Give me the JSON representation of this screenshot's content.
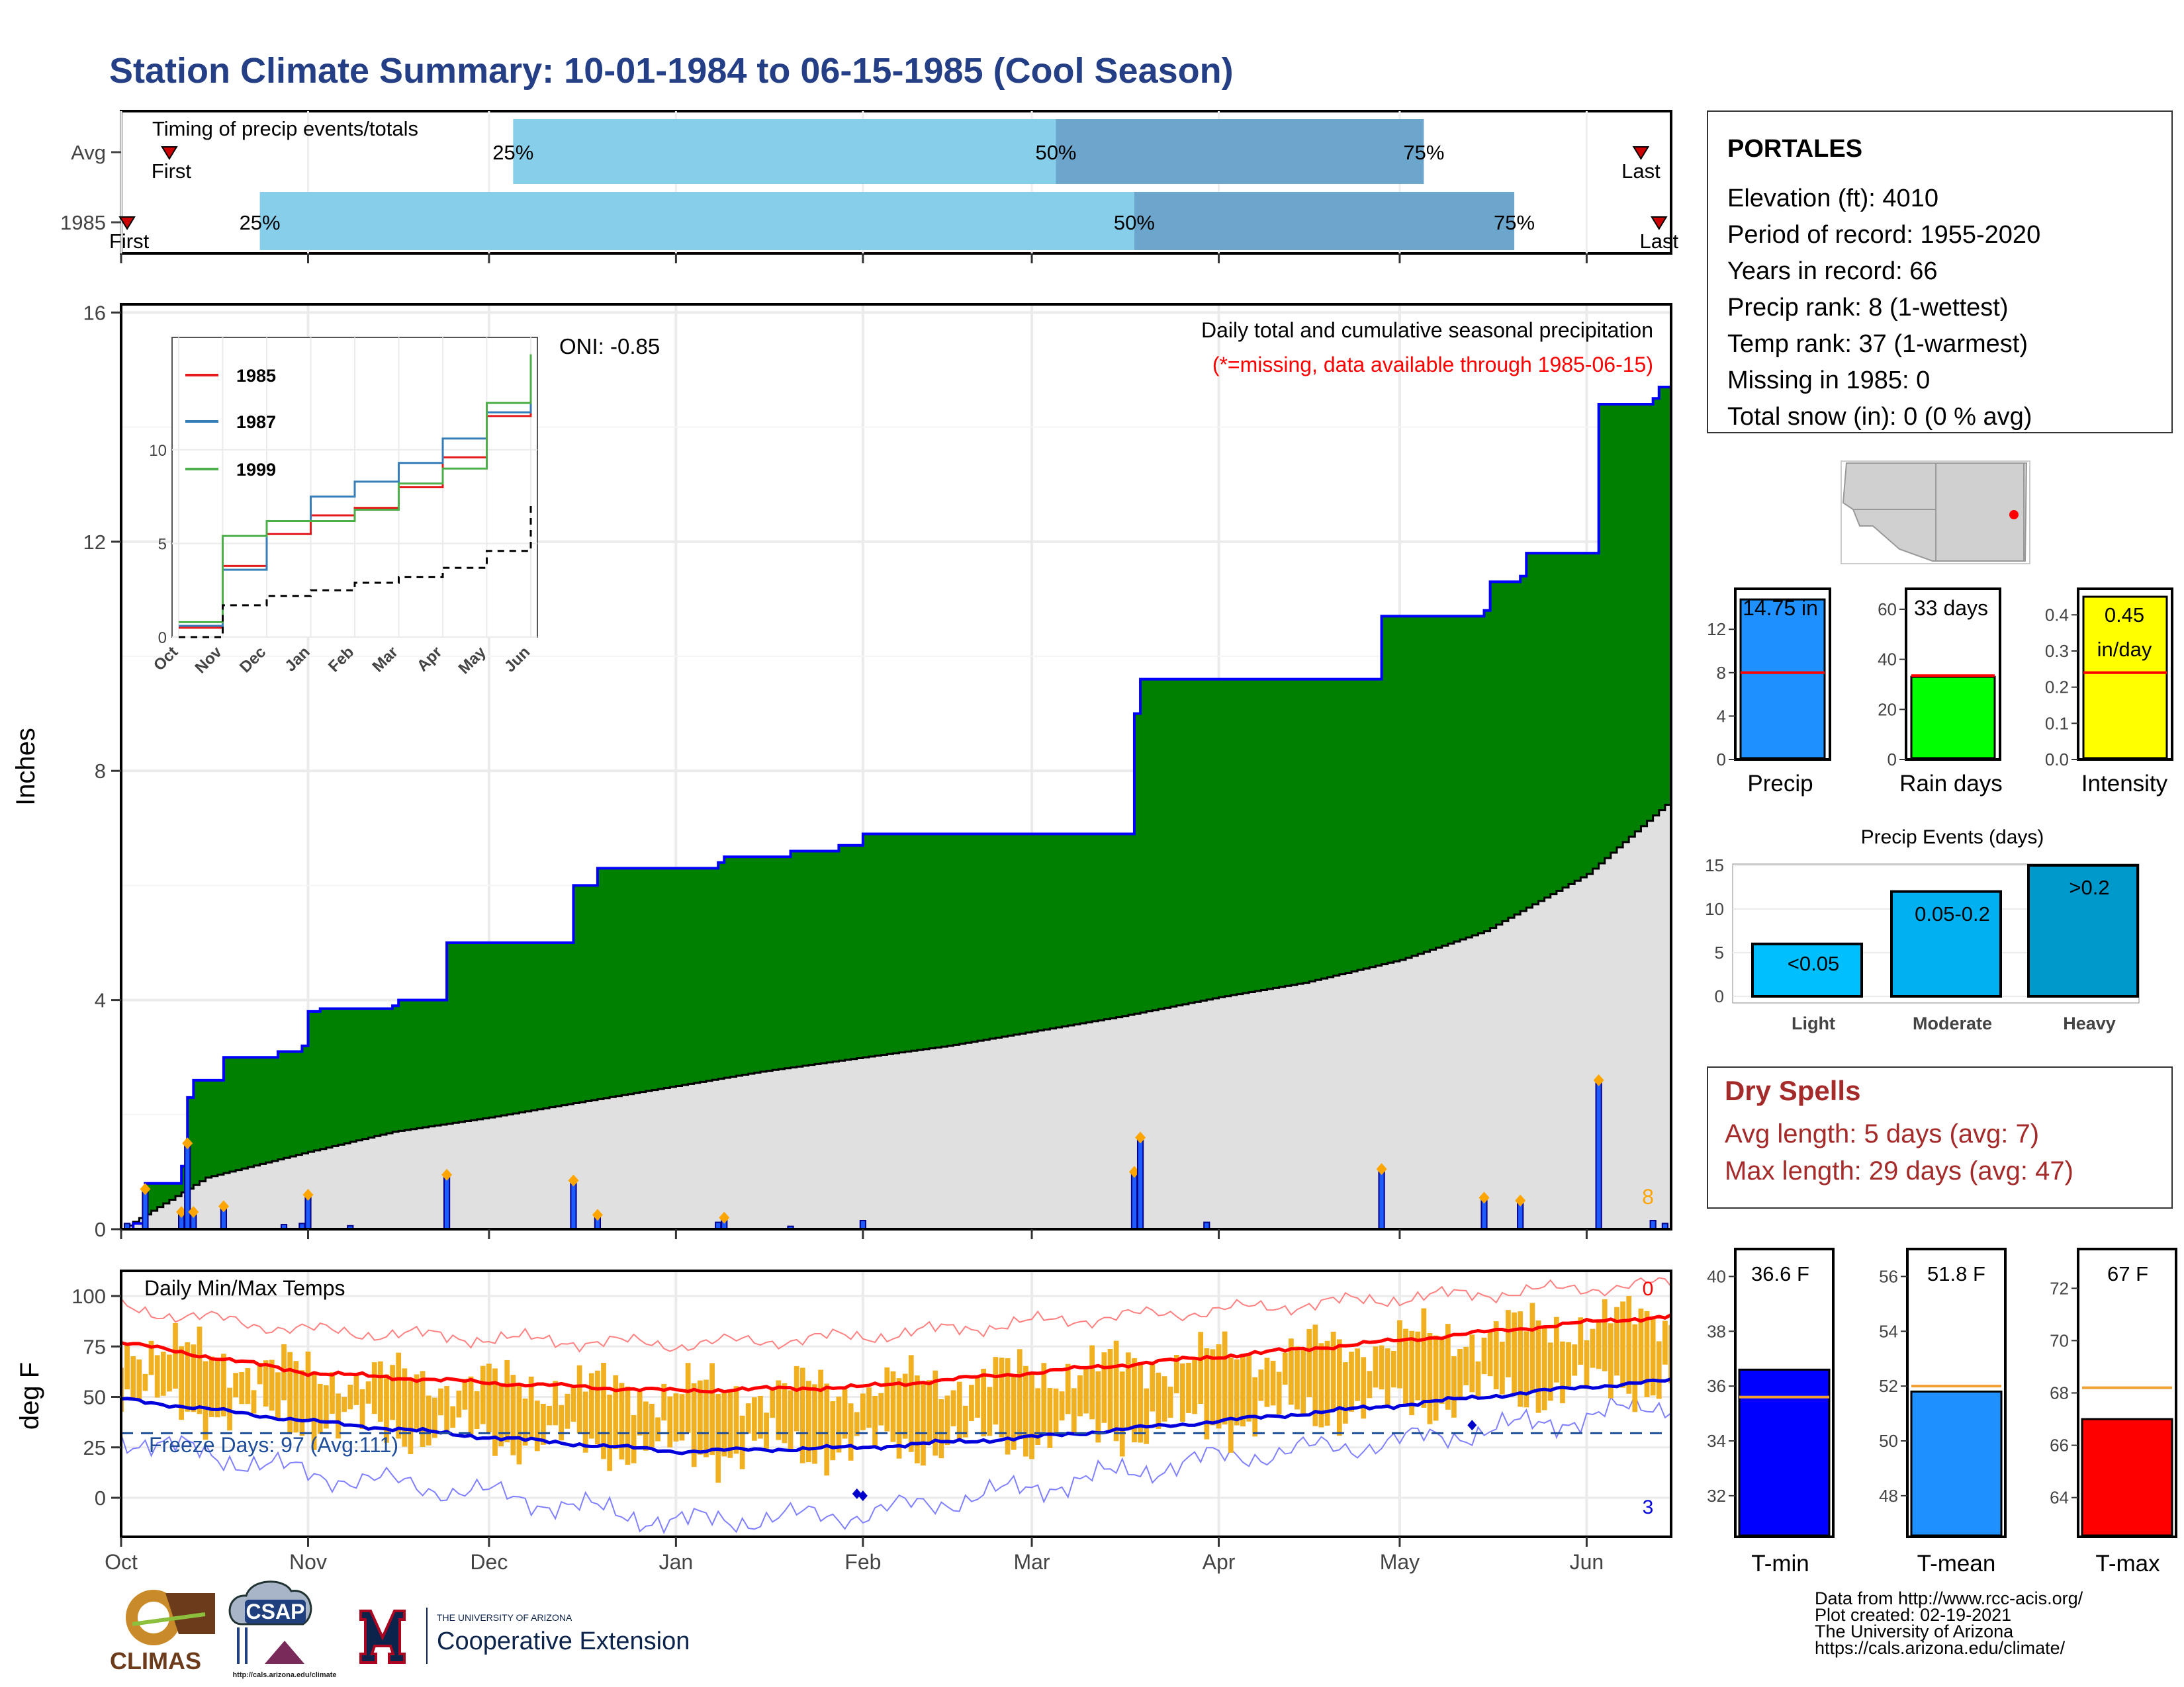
{
  "page": {
    "title": "Station Climate Summary: 10-01-1984 to 06-15-1985 (Cool Season)",
    "title_color": "#243f85"
  },
  "timing": {
    "title": "Timing of precip events/totals",
    "rows": [
      {
        "label": "Avg",
        "first_label": "First",
        "last_label": "Last",
        "first_date": "1984-10-09",
        "last_date": "1985-06-10",
        "p25": "1984-12-05",
        "p50": "1985-03-05",
        "p75": "1985-05-05"
      },
      {
        "label": "1985",
        "first_label": "First",
        "last_label": "Last",
        "first_date": "1984-10-02",
        "last_date": "1985-06-13",
        "p25": "1984-10-24",
        "p50": "1985-03-18",
        "p75": "1985-05-20"
      }
    ],
    "pct_labels": [
      "25%",
      "50%",
      "75%"
    ]
  },
  "precip_panel": {
    "ylabel": "Inches",
    "legend_line1": "Daily total and cumulative seasonal precipitation",
    "legend_line2": "(*=missing, data available through 1985-06-15)",
    "oni": "ONI: -0.85",
    "count_label": "8",
    "yticks": [
      "0",
      "4",
      "8",
      "12",
      "16"
    ]
  },
  "inset": {
    "legend": [
      "1985",
      "1987",
      "1999"
    ],
    "yticks": [
      "0",
      "5",
      "10"
    ],
    "xticks": [
      "Oct",
      "Nov",
      "Dec",
      "Jan",
      "Feb",
      "Mar",
      "Apr",
      "May",
      "Jun"
    ]
  },
  "temp_panel": {
    "ylabel": "deg F",
    "title": "Daily Min/Max Temps",
    "freeze_label": "Freeze Days: 97 (Avg:111)",
    "hot_count": "0",
    "cold_count": "3",
    "yticks": [
      "0",
      "25",
      "50",
      "75",
      "100"
    ]
  },
  "months": [
    "Oct",
    "Nov",
    "Dec",
    "Jan",
    "Feb",
    "Mar",
    "Apr",
    "May",
    "Jun"
  ],
  "station": {
    "name": "PORTALES",
    "lines": [
      "Elevation (ft): 4010",
      "Period of record: 1955-2020",
      "Years in record: 66",
      "Precip rank: 8 (1-wettest)",
      "Temp rank: 37 (1-warmest)",
      "Missing in 1985: 0",
      "Total snow (in): 0 (0 % avg)"
    ]
  },
  "summary_bars": {
    "precip": {
      "label": "Precip",
      "value_label": "14.75 in",
      "yticks": [
        "0",
        "4",
        "8",
        "12"
      ]
    },
    "rain_days": {
      "label": "Rain days",
      "value_label": "33 days",
      "yticks": [
        "0",
        "20",
        "40",
        "60"
      ]
    },
    "intensity": {
      "label": "Intensity",
      "value_label1": "0.45",
      "value_label2": "in/day",
      "yticks": [
        "0.0",
        "0.1",
        "0.2",
        "0.3",
        "0.4"
      ]
    }
  },
  "precip_events": {
    "title": "Precip Events (days)",
    "categories": [
      "Light",
      "Moderate",
      "Heavy"
    ],
    "value_labels": [
      "<0.05",
      "0.05-0.2",
      ">0.2"
    ],
    "yticks": [
      "0",
      "5",
      "10",
      "15"
    ]
  },
  "dry_spells": {
    "title": "Dry Spells",
    "line1": "Avg length: 5 days (avg: 7)",
    "line2": "Max length: 29 days (avg: 47)",
    "color": "#a52a2a"
  },
  "temp_bars": {
    "tmin": {
      "label": "T-min",
      "value_label": "36.6 F",
      "yticks": [
        "32",
        "34",
        "36",
        "38",
        "40"
      ]
    },
    "tmean": {
      "label": "T-mean",
      "value_label": "51.8 F",
      "yticks": [
        "48",
        "50",
        "52",
        "54",
        "56"
      ]
    },
    "tmax": {
      "label": "T-max",
      "value_label": "67 F",
      "yticks": [
        "64",
        "66",
        "68",
        "70",
        "72"
      ]
    }
  },
  "logos": {
    "climas": "CLIMAS",
    "csap": "CSAP",
    "csap_url": "http://cals.arizona.edu/climate",
    "ua_small": "THE UNIVERSITY OF ARIZONA",
    "ua_big": "Cooperative Extension"
  },
  "footer": [
    "Data from http://www.rcc-acis.org/",
    "Plot created: 02-19-2021",
    "The University of Arizona",
    "https://cals.arizona.edu/climate/"
  ],
  "chart_data": [
    {
      "type": "bar",
      "name": "timing",
      "categories": [
        "Avg",
        "1985"
      ],
      "series": [
        {
          "name": "Avg",
          "first": "1984-10-09",
          "p25": "1984-12-05",
          "p50": "1985-03-05",
          "p75": "1985-05-05",
          "last": "1985-06-10"
        },
        {
          "name": "1985",
          "first": "1984-10-02",
          "p25": "1984-10-24",
          "p50": "1985-03-18",
          "p75": "1985-05-20",
          "last": "1985-06-13"
        }
      ]
    },
    {
      "type": "area",
      "name": "precipitation",
      "xlim": [
        "1984-10-01",
        "1985-06-15"
      ],
      "ylim": [
        0,
        16
      ],
      "ylabel": "Inches",
      "cumulative_1985": [
        [
          "1984-10-01",
          0
        ],
        [
          "1984-10-03",
          0.1
        ],
        [
          "1984-10-05",
          0.8
        ],
        [
          "1984-10-10",
          0.8
        ],
        [
          "1984-10-11",
          1.1
        ],
        [
          "1984-10-12",
          2.3
        ],
        [
          "1984-10-13",
          2.6
        ],
        [
          "1984-10-17",
          2.6
        ],
        [
          "1984-10-18",
          3.0
        ],
        [
          "1984-10-27",
          3.1
        ],
        [
          "1984-10-31",
          3.2
        ],
        [
          "1984-11-01",
          3.8
        ],
        [
          "1984-11-03",
          3.85
        ],
        [
          "1984-11-15",
          3.9
        ],
        [
          "1984-11-16",
          4.0
        ],
        [
          "1984-11-23",
          4.0
        ],
        [
          "1984-11-24",
          5.0
        ],
        [
          "1984-12-14",
          5.0
        ],
        [
          "1984-12-15",
          6.0
        ],
        [
          "1984-12-19",
          6.3
        ],
        [
          "1985-01-07",
          6.3
        ],
        [
          "1985-01-08",
          6.4
        ],
        [
          "1985-01-09",
          6.5
        ],
        [
          "1985-01-20",
          6.6
        ],
        [
          "1985-01-28",
          6.7
        ],
        [
          "1985-02-01",
          6.9
        ],
        [
          "1985-03-17",
          6.9
        ],
        [
          "1985-03-18",
          9.0
        ],
        [
          "1985-03-19",
          9.6
        ],
        [
          "1985-04-27",
          9.6
        ],
        [
          "1985-04-28",
          10.7
        ],
        [
          "1985-05-15",
          10.8
        ],
        [
          "1985-05-16",
          11.3
        ],
        [
          "1985-05-21",
          11.4
        ],
        [
          "1985-05-22",
          11.8
        ],
        [
          "1985-06-02",
          11.8
        ],
        [
          "1985-06-03",
          14.4
        ],
        [
          "1985-06-12",
          14.5
        ],
        [
          "1985-06-13",
          14.7
        ],
        [
          "1985-06-15",
          14.75
        ]
      ],
      "average_cumulative": [
        [
          "1984-10-01",
          0
        ],
        [
          "1984-10-15",
          0.9
        ],
        [
          "1984-11-01",
          1.35
        ],
        [
          "1984-11-15",
          1.7
        ],
        [
          "1984-12-01",
          1.95
        ],
        [
          "1984-12-15",
          2.2
        ],
        [
          "1985-01-01",
          2.5
        ],
        [
          "1985-01-15",
          2.75
        ],
        [
          "1985-02-01",
          3.0
        ],
        [
          "1985-02-15",
          3.2
        ],
        [
          "1985-03-01",
          3.45
        ],
        [
          "1985-03-15",
          3.7
        ],
        [
          "1985-04-01",
          4.05
        ],
        [
          "1985-04-15",
          4.3
        ],
        [
          "1985-05-01",
          4.7
        ],
        [
          "1985-05-15",
          5.2
        ],
        [
          "1985-06-01",
          6.2
        ],
        [
          "1985-06-15",
          7.5
        ]
      ],
      "daily_1985": [
        [
          "1984-10-02",
          0.1
        ],
        [
          "1984-10-05",
          0.7
        ],
        [
          "1984-10-11",
          0.3
        ],
        [
          "1984-10-12",
          1.5
        ],
        [
          "1984-10-13",
          0.3
        ],
        [
          "1984-10-18",
          0.4
        ],
        [
          "1984-10-28",
          0.08
        ],
        [
          "1984-10-31",
          0.1
        ],
        [
          "1984-11-01",
          0.6
        ],
        [
          "1984-11-08",
          0.06
        ],
        [
          "1984-11-24",
          0.95
        ],
        [
          "1984-12-15",
          0.85
        ],
        [
          "1984-12-19",
          0.25
        ],
        [
          "1985-01-08",
          0.12
        ],
        [
          "1985-01-09",
          0.2
        ],
        [
          "1985-01-20",
          0.05
        ],
        [
          "1985-02-01",
          0.15
        ],
        [
          "1985-03-18",
          1.0
        ],
        [
          "1985-03-19",
          1.6
        ],
        [
          "1985-03-30",
          0.12
        ],
        [
          "1985-04-28",
          1.05
        ],
        [
          "1985-05-15",
          0.55
        ],
        [
          "1985-05-21",
          0.5
        ],
        [
          "1985-06-03",
          2.6
        ],
        [
          "1985-06-12",
          0.15
        ],
        [
          "1985-06-14",
          0.1
        ]
      ]
    },
    {
      "type": "line",
      "name": "inset cumulative precipitation",
      "x": [
        "Oct",
        "Nov",
        "Dec",
        "Jan",
        "Feb",
        "Mar",
        "Apr",
        "May",
        "Jun"
      ],
      "ylim": [
        0,
        16
      ],
      "series": [
        {
          "name": "1985",
          "values": [
            0.5,
            3.8,
            5.5,
            6.5,
            6.9,
            8.0,
            9.6,
            11.8,
            14.75
          ]
        },
        {
          "name": "1987",
          "values": [
            0.6,
            3.6,
            6.2,
            7.5,
            8.3,
            9.3,
            10.6,
            12.0,
            15.0
          ]
        },
        {
          "name": "1999",
          "values": [
            0.8,
            5.4,
            6.2,
            6.2,
            6.8,
            8.2,
            9.0,
            12.5,
            15.1
          ]
        },
        {
          "name": "",
          "values": [
            0.0,
            1.7,
            2.2,
            2.5,
            2.9,
            3.2,
            3.7,
            4.6,
            7.0
          ]
        }
      ]
    },
    {
      "type": "line",
      "name": "daily temperature",
      "ylabel": "deg F",
      "ylim": [
        -18,
        107
      ],
      "freeze_threshold": 32,
      "monthly_avg_max": [
        [
          "1984-10-01",
          77
        ],
        [
          "1984-11-01",
          62
        ],
        [
          "1984-12-01",
          57
        ],
        [
          "1985-01-01",
          53
        ],
        [
          "1985-02-01",
          55
        ],
        [
          "1985-03-01",
          62
        ],
        [
          "1985-04-01",
          70
        ],
        [
          "1985-05-01",
          78
        ],
        [
          "1985-06-01",
          87
        ],
        [
          "1985-06-15",
          90
        ]
      ],
      "monthly_avg_min": [
        [
          "1984-10-01",
          49
        ],
        [
          "1984-11-01",
          38
        ],
        [
          "1984-12-01",
          30
        ],
        [
          "1985-01-01",
          23
        ],
        [
          "1985-02-01",
          25
        ],
        [
          "1985-03-01",
          30
        ],
        [
          "1985-04-01",
          38
        ],
        [
          "1985-05-01",
          46
        ],
        [
          "1985-06-01",
          55
        ],
        [
          "1985-06-15",
          58
        ]
      ],
      "record_high": [
        [
          "1984-10-01",
          94
        ],
        [
          "1984-11-01",
          83
        ],
        [
          "1984-12-01",
          79
        ],
        [
          "1985-01-01",
          76
        ],
        [
          "1985-02-01",
          80
        ],
        [
          "1985-03-01",
          87
        ],
        [
          "1985-04-01",
          93
        ],
        [
          "1985-05-01",
          99
        ],
        [
          "1985-06-01",
          104
        ],
        [
          "1985-06-15",
          106
        ]
      ],
      "record_low": [
        [
          "1984-10-01",
          30
        ],
        [
          "1984-11-01",
          12
        ],
        [
          "1984-12-01",
          2
        ],
        [
          "1985-01-01",
          -12
        ],
        [
          "1985-02-01",
          -8
        ],
        [
          "1985-03-01",
          5
        ],
        [
          "1985-04-01",
          20
        ],
        [
          "1985-05-01",
          28
        ],
        [
          "1985-06-01",
          40
        ],
        [
          "1985-06-15",
          47
        ]
      ],
      "record_lows_set_1985": [
        [
          "1985-01-31",
          2
        ],
        [
          "1985-02-01",
          1
        ],
        [
          "1985-05-13",
          36
        ]
      ]
    },
    {
      "type": "bar",
      "name": "season summary",
      "categories": [
        "Precip",
        "Rain days",
        "Intensity"
      ],
      "values": [
        14.75,
        33,
        0.45
      ],
      "averages": [
        8.0,
        33.5,
        0.24
      ],
      "ylims": [
        [
          0,
          15
        ],
        [
          0,
          65
        ],
        [
          0,
          0.45
        ]
      ]
    },
    {
      "type": "bar",
      "name": "Precip Events (days)",
      "categories": [
        "Light",
        "Moderate",
        "Heavy"
      ],
      "values": [
        6,
        12,
        15
      ],
      "ylim": [
        0,
        16
      ]
    },
    {
      "type": "bar",
      "name": "seasonal temperatures",
      "categories": [
        "T-min",
        "T-mean",
        "T-max"
      ],
      "values": [
        36.6,
        51.8,
        67
      ],
      "averages": [
        35.6,
        52.0,
        68.2
      ],
      "ylims": [
        [
          30.5,
          41
        ],
        [
          46.5,
          57
        ],
        [
          62.5,
          73.5
        ]
      ]
    }
  ]
}
